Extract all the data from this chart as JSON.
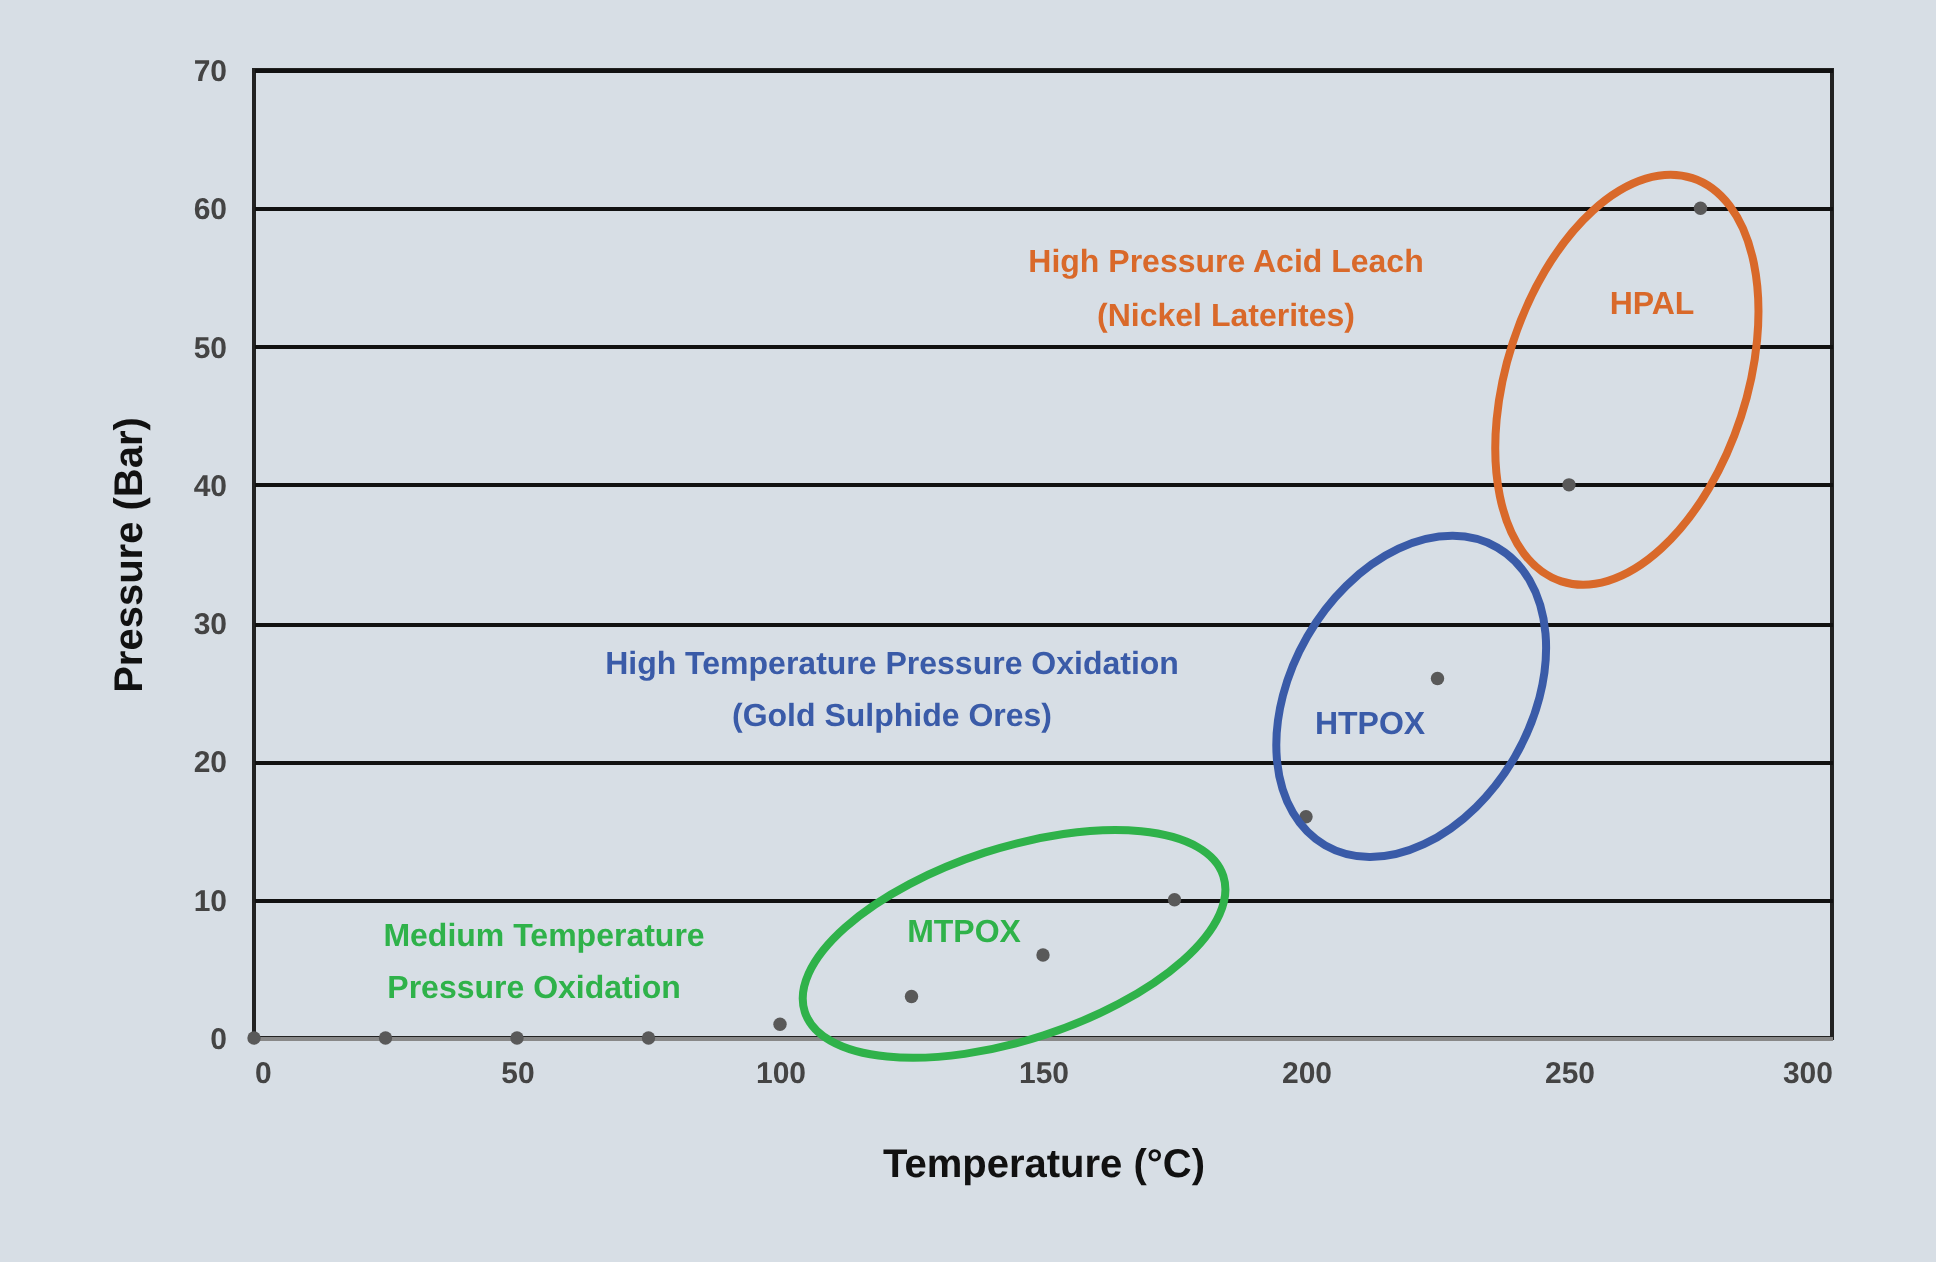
{
  "chart_data": {
    "type": "scatter",
    "xlabel": "Temperature (°C)",
    "ylabel": "Pressure (Bar)",
    "x": [
      0,
      25,
      50,
      75,
      100,
      125,
      150,
      175,
      200,
      225,
      250,
      275
    ],
    "series": [
      {
        "color": "#595959",
        "values": [
          0,
          0,
          0,
          0,
          1,
          3,
          6,
          10,
          16,
          26,
          40,
          60
        ]
      }
    ],
    "xlim": [
      0,
      300
    ],
    "xticks": [
      0,
      50,
      100,
      150,
      200,
      250,
      300
    ],
    "ylim": [
      0,
      70
    ],
    "yticks": [
      0,
      10,
      20,
      30,
      40,
      50,
      60,
      70
    ],
    "grid": "y",
    "marker": "circle",
    "annotations": [
      "High Pressure Acid Leach",
      "(Nickel Laterites)",
      "HPAL",
      "High Temperature Pressure Oxidation",
      "(Gold Sulphide Ores)",
      "HTPOX",
      "Medium Temperature",
      "Pressure Oxidation",
      "MTPOX"
    ]
  }
}
